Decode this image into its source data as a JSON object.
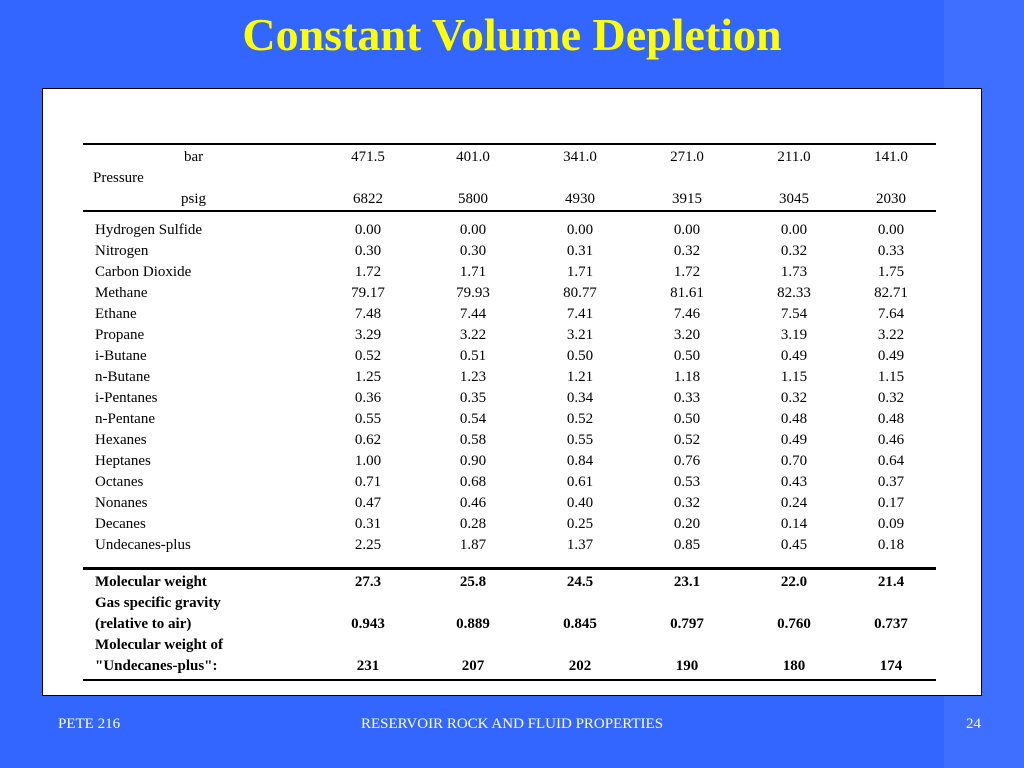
{
  "slide": {
    "title": "Constant Volume Depletion",
    "footer_left": "PETE 216",
    "footer_center": "RESERVOIR ROCK AND FLUID PROPERTIES",
    "footer_right": "24",
    "background_color": "#3366FF",
    "title_color": "#FFFF00"
  },
  "table": {
    "pressure_label": "Pressure",
    "bar_unit": "bar",
    "psig_unit": "psig",
    "bar_values": [
      "471.5",
      "401.0",
      "341.0",
      "271.0",
      "211.0",
      "141.0"
    ],
    "psig_values": [
      "6822",
      "5800",
      "4930",
      "3915",
      "3045",
      "2030"
    ],
    "components": [
      {
        "name": "Hydrogen Sulfide",
        "values": [
          "0.00",
          "0.00",
          "0.00",
          "0.00",
          "0.00",
          "0.00"
        ]
      },
      {
        "name": "Nitrogen",
        "values": [
          "0.30",
          "0.30",
          "0.31",
          "0.32",
          "0.32",
          "0.33"
        ]
      },
      {
        "name": "Carbon Dioxide",
        "values": [
          "1.72",
          "1.71",
          "1.71",
          "1.72",
          "1.73",
          "1.75"
        ]
      },
      {
        "name": "Methane",
        "values": [
          "79.17",
          "79.93",
          "80.77",
          "81.61",
          "82.33",
          "82.71"
        ]
      },
      {
        "name": "Ethane",
        "values": [
          "7.48",
          "7.44",
          "7.41",
          "7.46",
          "7.54",
          "7.64"
        ]
      },
      {
        "name": "Propane",
        "values": [
          "3.29",
          "3.22",
          "3.21",
          "3.20",
          "3.19",
          "3.22"
        ]
      },
      {
        "name": "i-Butane",
        "values": [
          "0.52",
          "0.51",
          "0.50",
          "0.50",
          "0.49",
          "0.49"
        ]
      },
      {
        "name": "n-Butane",
        "values": [
          "1.25",
          "1.23",
          "1.21",
          "1.18",
          "1.15",
          "1.15"
        ]
      },
      {
        "name": "i-Pentanes",
        "values": [
          "0.36",
          "0.35",
          "0.34",
          "0.33",
          "0.32",
          "0.32"
        ]
      },
      {
        "name": "n-Pentane",
        "values": [
          "0.55",
          "0.54",
          "0.52",
          "0.50",
          "0.48",
          "0.48"
        ]
      },
      {
        "name": "Hexanes",
        "values": [
          "0.62",
          "0.58",
          "0.55",
          "0.52",
          "0.49",
          "0.46"
        ]
      },
      {
        "name": "Heptanes",
        "values": [
          "1.00",
          "0.90",
          "0.84",
          "0.76",
          "0.70",
          "0.64"
        ]
      },
      {
        "name": "Octanes",
        "values": [
          "0.71",
          "0.68",
          "0.61",
          "0.53",
          "0.43",
          "0.37"
        ]
      },
      {
        "name": "Nonanes",
        "values": [
          "0.47",
          "0.46",
          "0.40",
          "0.32",
          "0.24",
          "0.17"
        ]
      },
      {
        "name": "Decanes",
        "values": [
          "0.31",
          "0.28",
          "0.25",
          "0.20",
          "0.14",
          "0.09"
        ]
      },
      {
        "name": "Undecanes-plus",
        "values": [
          "2.25",
          "1.87",
          "1.37",
          "0.85",
          "0.45",
          "0.18"
        ]
      }
    ],
    "properties": {
      "mw_label": "Molecular weight",
      "mw_values": [
        "27.3",
        "25.8",
        "24.5",
        "23.1",
        "22.0",
        "21.4"
      ],
      "sg_label_1": "Gas specific gravity",
      "sg_label_2": "(relative to air)",
      "sg_values": [
        "0.943",
        "0.889",
        "0.845",
        "0.797",
        "0.760",
        "0.737"
      ],
      "mwplus_label_1": "Molecular weight of",
      "mwplus_label_2": "\"Undecanes-plus\":",
      "mwplus_values": [
        "231",
        "207",
        "202",
        "190",
        "180",
        "174"
      ]
    }
  }
}
